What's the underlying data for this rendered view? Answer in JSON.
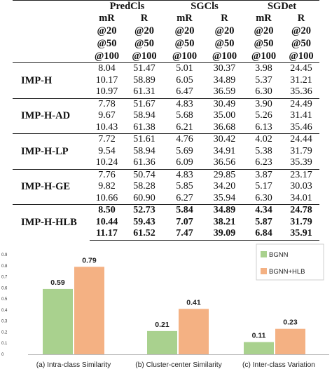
{
  "table": {
    "groups": [
      "PredCls",
      "SGCls",
      "SGDet"
    ],
    "col_headers": [
      "mR",
      "R",
      "mR",
      "R",
      "mR",
      "R"
    ],
    "k_rows": [
      [
        "@20",
        "@20",
        "@20",
        "@20",
        "@20",
        "@20"
      ],
      [
        "@50",
        "@50",
        "@50",
        "@50",
        "@50",
        "@50"
      ],
      [
        "@100",
        "@100",
        "@100",
        "@100",
        "@100",
        "@100"
      ]
    ],
    "methods": [
      {
        "name": "IMP-H",
        "rows": [
          [
            "8.04",
            "51.47",
            "5.01",
            "30.37",
            "3.98",
            "24.45"
          ],
          [
            "10.17",
            "58.89",
            "6.05",
            "34.89",
            "5.37",
            "31.21"
          ],
          [
            "10.97",
            "61.31",
            "6.47",
            "36.59",
            "6.30",
            "35.36"
          ]
        ]
      },
      {
        "name": "IMP-H-AD",
        "rows": [
          [
            "7.78",
            "51.67",
            "4.83",
            "30.49",
            "3.90",
            "24.49"
          ],
          [
            "9.67",
            "58.94",
            "5.68",
            "35.00",
            "5.26",
            "31.41"
          ],
          [
            "10.43",
            "61.38",
            "6.21",
            "36.68",
            "6.13",
            "35.46"
          ]
        ]
      },
      {
        "name": "IMP-H-LP",
        "rows": [
          [
            "7.72",
            "51.61",
            "4.76",
            "30.42",
            "4.02",
            "24.44"
          ],
          [
            "9.54",
            "58.94",
            "5.69",
            "34.91",
            "5.38",
            "31.79"
          ],
          [
            "10.24",
            "61.36",
            "6.09",
            "36.56",
            "6.23",
            "35.39"
          ]
        ]
      },
      {
        "name": "IMP-H-GE",
        "rows": [
          [
            "7.76",
            "50.74",
            "4.83",
            "29.85",
            "3.87",
            "23.17"
          ],
          [
            "9.82",
            "58.28",
            "5.85",
            "34.20",
            "5.17",
            "30.03"
          ],
          [
            "10.66",
            "60.90",
            "6.27",
            "35.94",
            "6.30",
            "34.01"
          ]
        ]
      },
      {
        "name": "IMP-H-HLB",
        "rows": [
          [
            "8.50",
            "52.73",
            "5.84",
            "34.89",
            "4.34",
            "24.78"
          ],
          [
            "10.44",
            "59.43",
            "7.07",
            "38.21",
            "5.87",
            "31.79"
          ],
          [
            "11.17",
            "61.52",
            "7.47",
            "39.09",
            "6.84",
            "35.91"
          ]
        ]
      }
    ]
  },
  "chart_data": {
    "type": "bar",
    "categories": [
      "(a) Intra-class Similarity",
      "(b) Cluster-center Similarity",
      "(c) Inter-class Variation"
    ],
    "series": [
      {
        "name": "BGNN",
        "values": [
          0.59,
          0.21,
          0.11
        ],
        "color": "#a9d18e"
      },
      {
        "name": "BGNN+HLB",
        "values": [
          0.79,
          0.41,
          0.23
        ],
        "color": "#f4b183"
      }
    ],
    "value_labels": [
      [
        "0.59",
        "0.21",
        "0.11"
      ],
      [
        "0.79",
        "0.41",
        "0.23"
      ]
    ],
    "yticks": [
      "0.9",
      "0.8",
      "0.7",
      "0.6",
      "0.5",
      "0.4",
      "0.3",
      "0.2",
      "0.1",
      "0"
    ],
    "ylim": [
      0,
      0.9
    ],
    "legend_placement": "top-right",
    "grid": false
  }
}
